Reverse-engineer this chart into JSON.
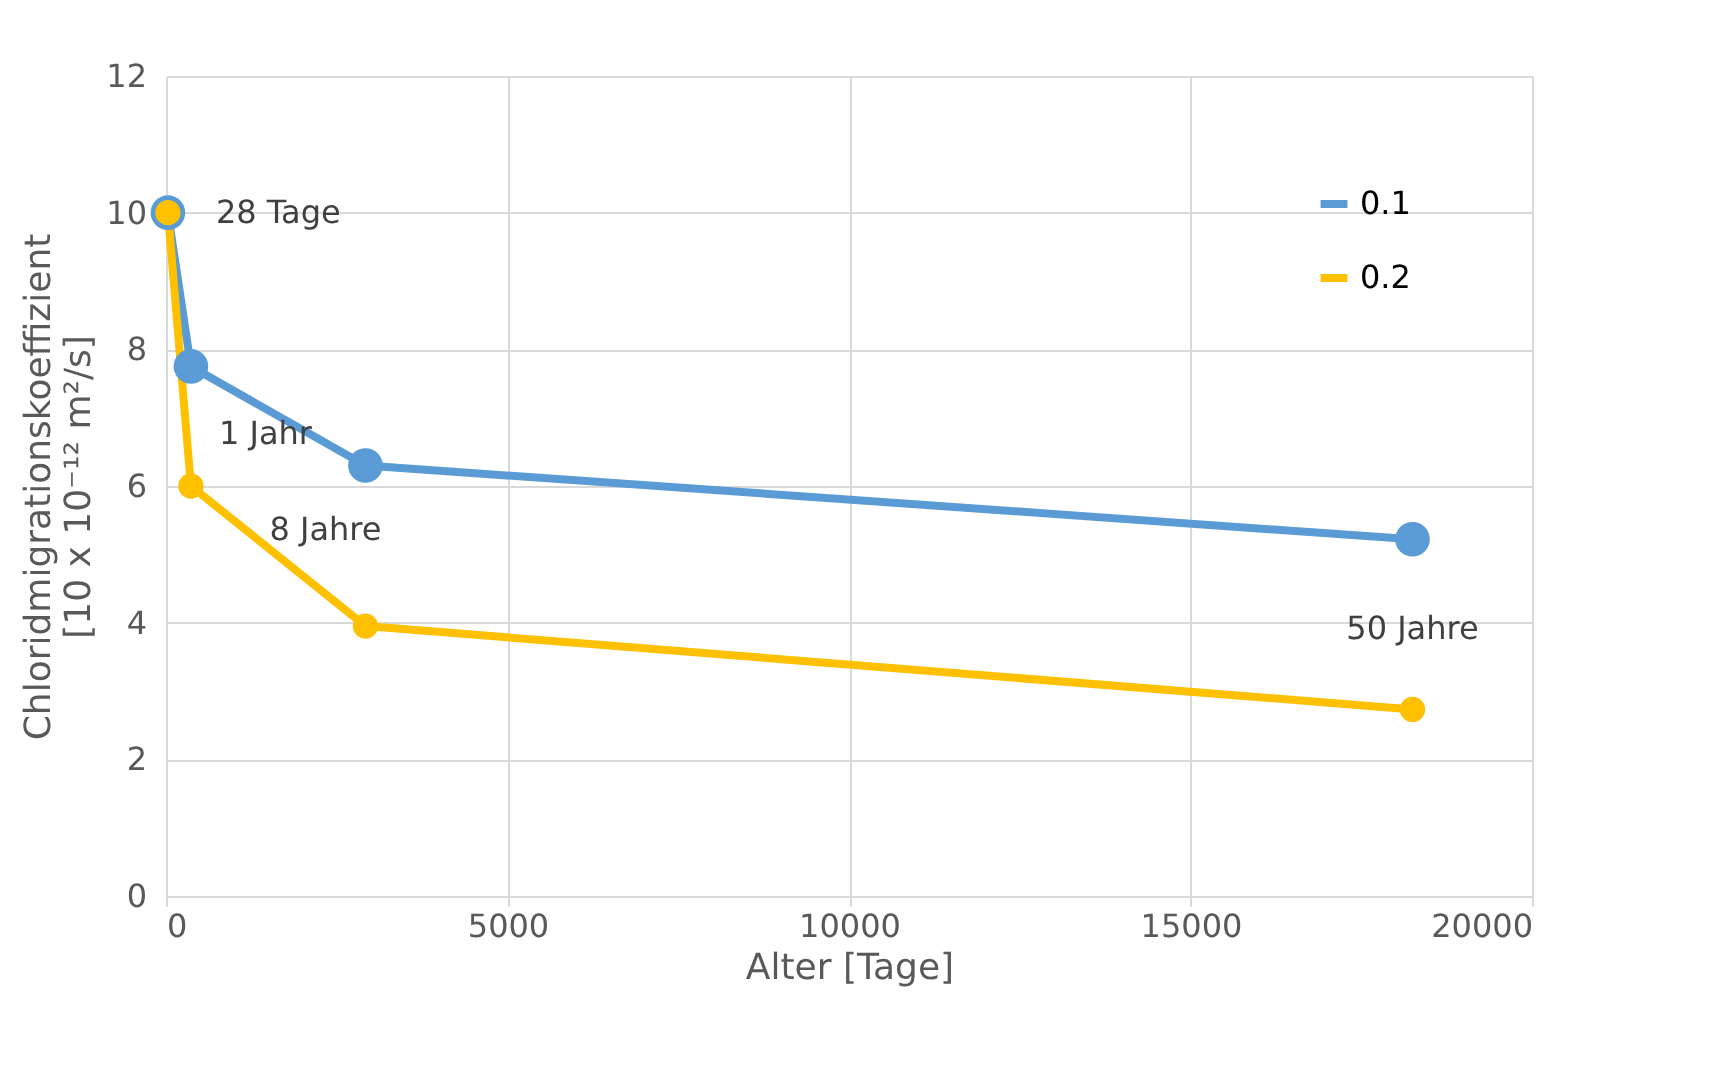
{
  "chart_data": {
    "type": "line",
    "xlabel": "Alter [Tage]",
    "ylabel": "Chloridmigrationskoeffizient\n[10 x 10⁻¹² m²/s]",
    "x": [
      28,
      365,
      2920,
      18250
    ],
    "series": [
      {
        "name": "0.1",
        "color": "#5b9bd5",
        "values": [
          10,
          7.75,
          6.3,
          5.22
        ]
      },
      {
        "name": "0.2",
        "color": "#ffc000",
        "values": [
          10,
          6.0,
          3.95,
          2.73
        ]
      }
    ],
    "xlim": [
      0,
      20000
    ],
    "xticks": [
      0,
      5000,
      10000,
      15000,
      20000
    ],
    "ylim": [
      0,
      12
    ],
    "yticks": [
      0,
      2,
      4,
      6,
      8,
      10,
      12
    ],
    "annotations": [
      {
        "text": "28 Tage",
        "x": 28,
        "y": 10
      },
      {
        "text": "1 Jahr",
        "x": 365,
        "y": 7.75
      },
      {
        "text": "8 Jahre",
        "x": 2920,
        "y": 6.3
      },
      {
        "text": "50 Jahre",
        "x": 18250,
        "y": 5.22
      }
    ],
    "grid": true,
    "legend": "top right",
    "marker": "circle",
    "line_style": "solid"
  }
}
